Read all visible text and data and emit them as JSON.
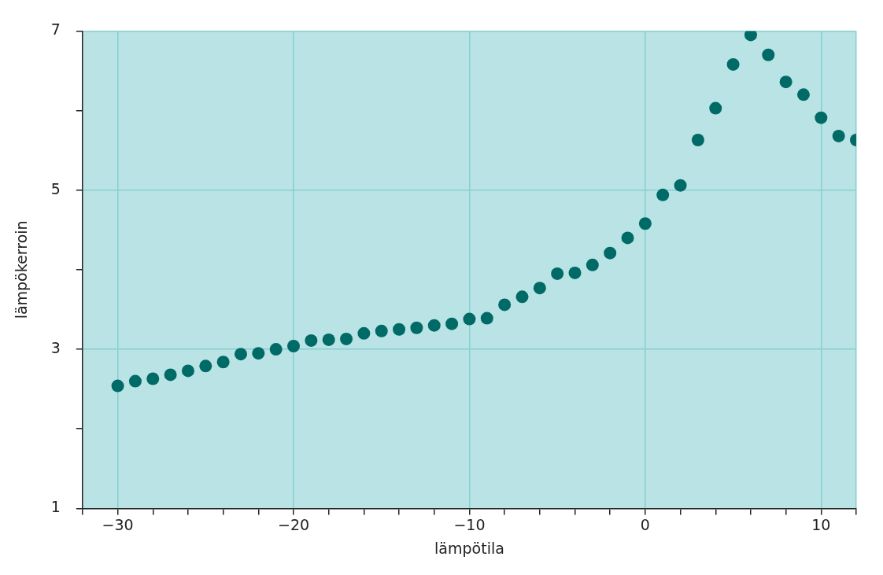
{
  "chart_data": {
    "type": "scatter",
    "xlabel": "lämpötila",
    "ylabel": "lämpökerroin",
    "x": [
      -30,
      -29,
      -28,
      -27,
      -26,
      -25,
      -24,
      -23,
      -22,
      -21,
      -20,
      -19,
      -18,
      -17,
      -16,
      -15,
      -14,
      -13,
      -12,
      -11,
      -10,
      -9,
      -8,
      -7,
      -6,
      -5,
      -4,
      -3,
      -2,
      -1,
      0,
      1,
      2,
      3,
      4,
      5,
      6,
      7,
      8,
      9,
      10,
      11,
      12
    ],
    "series": [
      {
        "color": "#006a66",
        "values": [
          2.54,
          2.6,
          2.63,
          2.68,
          2.73,
          2.79,
          2.84,
          2.94,
          2.95,
          3.0,
          3.04,
          3.11,
          3.12,
          3.13,
          3.2,
          3.23,
          3.25,
          3.27,
          3.3,
          3.32,
          3.38,
          3.39,
          3.56,
          3.66,
          3.77,
          3.95,
          3.96,
          4.06,
          4.21,
          4.4,
          4.58,
          4.94,
          5.06,
          5.63,
          6.03,
          6.58,
          6.95,
          6.7,
          6.36,
          6.2,
          5.91,
          5.68,
          5.63
        ]
      }
    ],
    "xlim": [
      -32,
      12
    ],
    "xticks": [
      {
        "value": -32,
        "label": null
      },
      {
        "value": -30,
        "label": "−30"
      },
      {
        "value": -28,
        "label": null
      },
      {
        "value": -26,
        "label": null
      },
      {
        "value": -24,
        "label": null
      },
      {
        "value": -22,
        "label": null
      },
      {
        "value": -20,
        "label": "−20"
      },
      {
        "value": -18,
        "label": null
      },
      {
        "value": -16,
        "label": null
      },
      {
        "value": -14,
        "label": null
      },
      {
        "value": -12,
        "label": null
      },
      {
        "value": -10,
        "label": "−10"
      },
      {
        "value": -8,
        "label": null
      },
      {
        "value": -6,
        "label": null
      },
      {
        "value": -4,
        "label": null
      },
      {
        "value": -2,
        "label": null
      },
      0,
      {
        "value": 2,
        "label": null
      },
      {
        "value": 4,
        "label": null
      },
      {
        "value": 6,
        "label": null
      },
      {
        "value": 8,
        "label": null
      },
      10,
      {
        "value": 12,
        "label": null
      }
    ],
    "ylim": [
      1,
      7
    ],
    "yticks": [
      1,
      {
        "value": 2,
        "label": null
      },
      3,
      {
        "value": 4,
        "label": null
      },
      5,
      {
        "value": 6,
        "label": null
      },
      7
    ],
    "grid": true,
    "legend": false,
    "marker": "circle"
  }
}
